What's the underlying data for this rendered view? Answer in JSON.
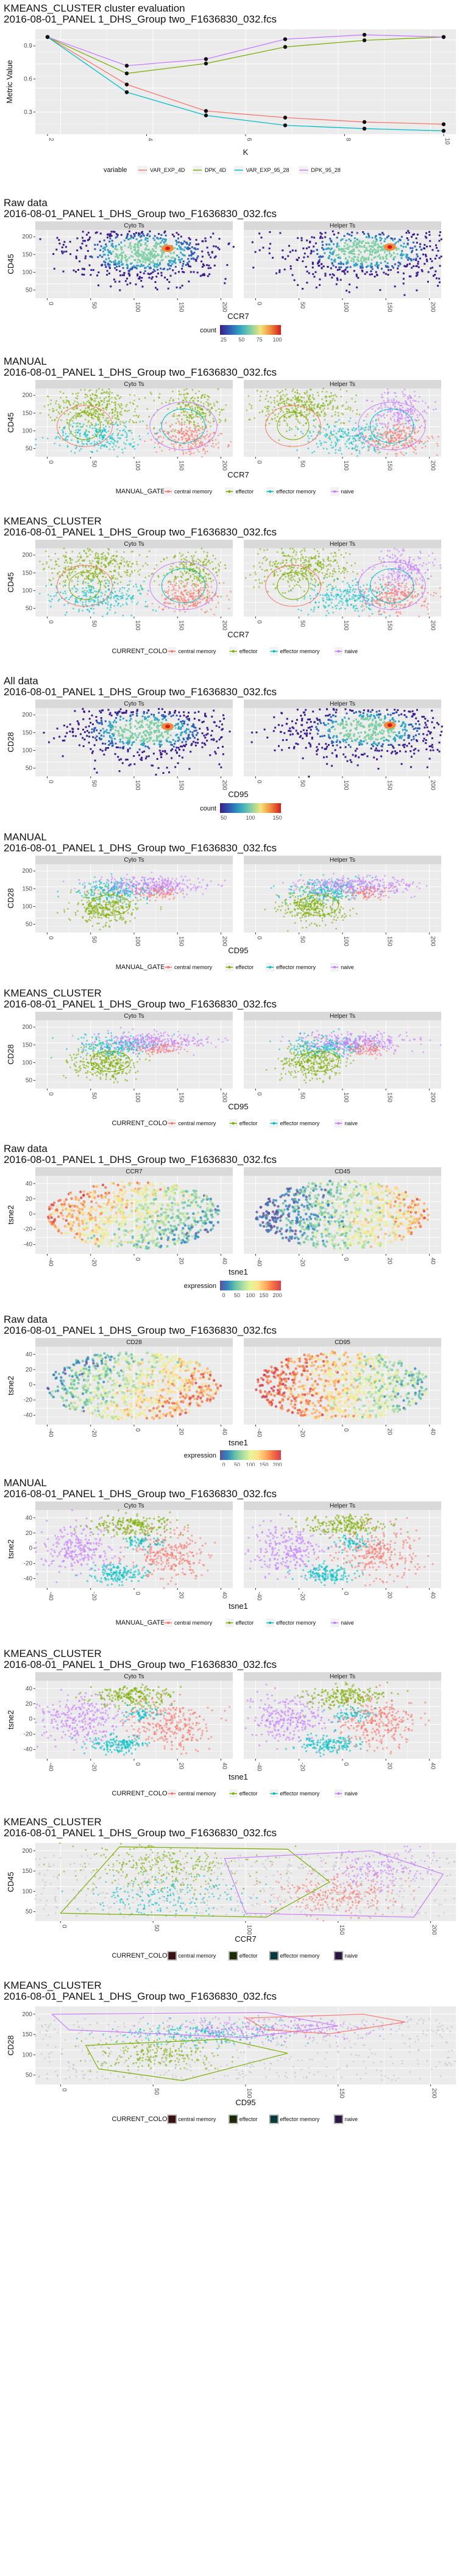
{
  "page": {
    "background": "#ffffff",
    "panel_bg": "#ebebeb",
    "strip_bg": "#d9d9d9",
    "grid": "#ffffff"
  },
  "colors": {
    "central memory": "#f8766d",
    "effector": "#7cae00",
    "effector memory": "#00bfc4",
    "naive": "#c77cff",
    "central memory dark": "#3a1013",
    "effector dark": "#1c2a05",
    "effector memory dark": "#063a3c",
    "naive dark": "#2a1842"
  },
  "figures": [
    {
      "id": "eval",
      "title1": "KMEANS_CLUSTER cluster evaluation",
      "title2": "2016-08-01_PANEL 1_DHS_Group two_F1636830_032.fcs",
      "chart_data": {
        "type": "line",
        "xlabel": "K",
        "ylabel": "Metric Value",
        "x": [
          1,
          2,
          3,
          4,
          5,
          6
        ],
        "xticks": [
          "2",
          "4",
          "6",
          "8",
          "10"
        ],
        "yticks": [
          "0.3",
          "0.6",
          "0.9"
        ],
        "xlim": [
          1,
          10
        ],
        "ylim": [
          0.1,
          1.05
        ],
        "legend_title": "variable",
        "series": [
          {
            "name": "VAR_EXP_4D",
            "values": [
              0.98,
              0.55,
              0.31,
              0.25,
              0.21,
              0.19
            ]
          },
          {
            "name": "DPK_4D",
            "values": [
              0.98,
              0.65,
              0.74,
              0.89,
              0.95,
              0.98
            ]
          },
          {
            "name": "VAR_EXP_95_28",
            "values": [
              0.98,
              0.48,
              0.27,
              0.18,
              0.15,
              0.13
            ]
          },
          {
            "name": "DPK_95_28",
            "values": [
              0.98,
              0.72,
              0.78,
              0.96,
              1.0,
              0.98
            ]
          }
        ]
      }
    },
    {
      "id": "raw-ccr7",
      "title1": "Raw data",
      "title2": "2016-08-01_PANEL 1_DHS_Group two_F1636830_032.fcs",
      "chart_data": {
        "type": "heatmap",
        "facets": [
          "Cyto Ts",
          "Helper Ts"
        ],
        "xlabel": "CCR7",
        "ylabel": "CD45",
        "xticks": [
          "0",
          "50",
          "100",
          "150",
          "200"
        ],
        "yticks": [
          "50",
          "100",
          "150",
          "200"
        ],
        "legend_title": "count",
        "legend_ticks": [
          "25",
          "50",
          "75",
          "100"
        ]
      }
    },
    {
      "id": "manual-ccr7",
      "title1": "MANUAL",
      "title2": "2016-08-01_PANEL 1_DHS_Group two_F1636830_032.fcs",
      "chart_data": {
        "type": "scatter",
        "facets": [
          "Cyto Ts",
          "Helper Ts"
        ],
        "xlabel": "CCR7",
        "ylabel": "CD45",
        "xticks": [
          "0",
          "50",
          "100",
          "150",
          "200"
        ],
        "yticks": [
          "50",
          "100",
          "150",
          "200"
        ],
        "legend_title": "MANUAL_GATE",
        "legend": [
          "central memory",
          "effector",
          "effector memory",
          "naive"
        ]
      }
    },
    {
      "id": "kmeans-ccr7",
      "title1": "KMEANS_CLUSTER",
      "title2": "2016-08-01_PANEL 1_DHS_Group two_F1636830_032.fcs",
      "chart_data": {
        "type": "scatter",
        "facets": [
          "Cyto Ts",
          "Helper Ts"
        ],
        "xlabel": "CCR7",
        "ylabel": "CD45",
        "xticks": [
          "0",
          "50",
          "100",
          "150",
          "200"
        ],
        "yticks": [
          "50",
          "100",
          "150",
          "200"
        ],
        "legend_title": "CURRENT_COLOR",
        "legend": [
          "central memory",
          "effector",
          "effector memory",
          "naive"
        ]
      }
    },
    {
      "id": "all-cd95",
      "title1": "All data",
      "title2": "2016-08-01_PANEL 1_DHS_Group two_F1636830_032.fcs",
      "chart_data": {
        "type": "heatmap",
        "facets": [
          "Cyto Ts",
          "Helper Ts"
        ],
        "xlabel": "CD95",
        "ylabel": "CD28",
        "xticks": [
          "0",
          "50",
          "100",
          "150",
          "200"
        ],
        "yticks": [
          "50",
          "100",
          "150",
          "200"
        ],
        "legend_title": "count",
        "legend_ticks": [
          "50",
          "100",
          "150"
        ]
      }
    },
    {
      "id": "manual-cd95",
      "title1": "MANUAL",
      "title2": "2016-08-01_PANEL 1_DHS_Group two_F1636830_032.fcs",
      "chart_data": {
        "type": "scatter",
        "facets": [
          "Cyto Ts",
          "Helper Ts"
        ],
        "xlabel": "CD95",
        "ylabel": "CD28",
        "xticks": [
          "0",
          "50",
          "100",
          "150",
          "200"
        ],
        "yticks": [
          "50",
          "100",
          "150",
          "200"
        ],
        "legend_title": "MANUAL_GATE",
        "legend": [
          "central memory",
          "effector",
          "effector memory",
          "naive"
        ]
      }
    },
    {
      "id": "kmeans-cd95",
      "title1": "KMEANS_CLUSTER",
      "title2": "2016-08-01_PANEL 1_DHS_Group two_F1636830_032.fcs",
      "chart_data": {
        "type": "scatter",
        "facets": [
          "Cyto Ts",
          "Helper Ts"
        ],
        "xlabel": "CD95",
        "ylabel": "CD28",
        "xticks": [
          "0",
          "50",
          "100",
          "150",
          "200"
        ],
        "yticks": [
          "50",
          "100",
          "150",
          "200"
        ],
        "legend_title": "CURRENT_COLOR",
        "legend": [
          "central memory",
          "effector",
          "effector memory",
          "naive"
        ]
      }
    },
    {
      "id": "tsne-ccr7",
      "title1": "Raw data",
      "title2": "2016-08-01_PANEL 1_DHS_Group two_F1636830_032.fcs",
      "chart_data": {
        "type": "scatter",
        "facets": [
          "CCR7",
          "CD45"
        ],
        "xlabel": "tsne1",
        "ylabel": "tsne2",
        "xticks": [
          "-40",
          "-20",
          "0",
          "20",
          "40"
        ],
        "yticks": [
          "-40",
          "-20",
          "0",
          "20",
          "40"
        ],
        "legend_title": "expression",
        "legend_ticks": [
          "0",
          "50",
          "100",
          "150",
          "200"
        ]
      }
    },
    {
      "id": "tsne-cd28",
      "title1": "Raw data",
      "title2": "2016-08-01_PANEL 1_DHS_Group two_F1636830_032.fcs",
      "chart_data": {
        "type": "scatter",
        "facets": [
          "CD28",
          "CD95"
        ],
        "xlabel": "tsne1",
        "ylabel": "tsne2",
        "xticks": [
          "-40",
          "-20",
          "0",
          "20",
          "40"
        ],
        "yticks": [
          "-40",
          "-20",
          "0",
          "20",
          "40"
        ],
        "legend_title": "expression",
        "legend_ticks": [
          "0",
          "50",
          "100",
          "150",
          "200"
        ]
      }
    },
    {
      "id": "tsne-manual",
      "title1": "MANUAL",
      "title2": "2016-08-01_PANEL 1_DHS_Group two_F1636830_032.fcs",
      "chart_data": {
        "type": "scatter",
        "facets": [
          "Cyto Ts",
          "Helper Ts"
        ],
        "xlabel": "tsne1",
        "ylabel": "tsne2",
        "xticks": [
          "-40",
          "-20",
          "0",
          "20",
          "40"
        ],
        "yticks": [
          "-40",
          "-20",
          "0",
          "20",
          "40"
        ],
        "legend_title": "MANUAL_GATE",
        "legend": [
          "central memory",
          "effector",
          "effector memory",
          "naive"
        ]
      }
    },
    {
      "id": "tsne-kmeans",
      "title1": "KMEANS_CLUSTER",
      "title2": "2016-08-01_PANEL 1_DHS_Group two_F1636830_032.fcs",
      "chart_data": {
        "type": "scatter",
        "facets": [
          "Cyto Ts",
          "Helper Ts"
        ],
        "xlabel": "tsne1",
        "ylabel": "tsne2",
        "xticks": [
          "-40",
          "-20",
          "0",
          "20",
          "40"
        ],
        "yticks": [
          "-40",
          "-20",
          "0",
          "20",
          "40"
        ],
        "legend_title": "CURRENT_COLOR",
        "legend": [
          "central memory",
          "effector",
          "effector memory",
          "naive"
        ]
      }
    },
    {
      "id": "hull-ccr7",
      "title1": "KMEANS_CLUSTER",
      "title2": "2016-08-01_PANEL 1_DHS_Group two_F1636830_032.fcs",
      "chart_data": {
        "type": "scatter",
        "facets": [],
        "xlabel": "CCR7",
        "ylabel": "CD45",
        "xticks": [
          "0",
          "50",
          "100",
          "150",
          "200"
        ],
        "yticks": [
          "50",
          "100",
          "150",
          "200"
        ],
        "legend_title": "CURRENT_COLOR",
        "legend": [
          "central memory",
          "effector",
          "effector memory",
          "naive"
        ]
      }
    },
    {
      "id": "hull-cd95",
      "title1": "KMEANS_CLUSTER",
      "title2": "2016-08-01_PANEL 1_DHS_Group two_F1636830_032.fcs",
      "chart_data": {
        "type": "scatter",
        "facets": [],
        "xlabel": "CD95",
        "ylabel": "CD28",
        "xticks": [
          "0",
          "50",
          "100",
          "150",
          "200"
        ],
        "yticks": [
          "50",
          "100",
          "150",
          "200"
        ],
        "legend_title": "CURRENT_COLOR",
        "legend": [
          "central memory",
          "effector",
          "effector memory",
          "naive"
        ]
      }
    }
  ]
}
